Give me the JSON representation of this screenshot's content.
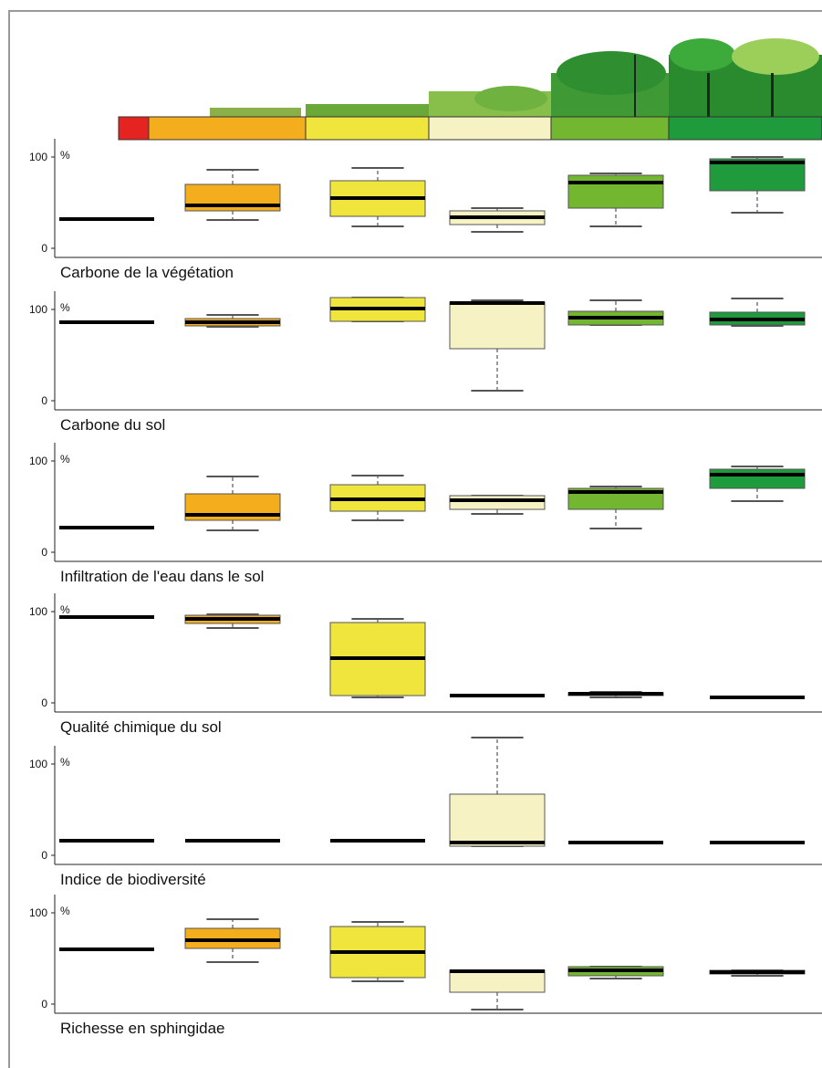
{
  "chart_data": [
    {
      "type": "box",
      "title": "Carbone de la végétation",
      "ylabel": "%",
      "categories": [
        null,
        null,
        null,
        null,
        null,
        null
      ],
      "colors": [
        "#e52421",
        "#f4ad1c",
        "#f0e53c",
        "#f6f2c4",
        "#72b72f",
        "#1f9a3c"
      ],
      "values": [
        [
          32,
          32,
          32,
          32,
          32
        ],
        [
          31,
          41,
          47,
          70,
          86
        ],
        [
          24,
          35,
          55,
          74,
          88
        ],
        [
          18,
          26,
          34,
          41,
          44
        ],
        [
          24,
          44,
          72,
          80,
          82
        ],
        [
          39,
          63,
          94,
          98,
          100
        ]
      ],
      "ylim": [
        -10,
        130
      ],
      "yticks": [
        0,
        100
      ]
    },
    {
      "type": "box",
      "title": "Carbone du sol",
      "ylabel": "%",
      "categories": [
        null,
        null,
        null,
        null,
        null,
        null
      ],
      "colors": [
        "#e52421",
        "#f4ad1c",
        "#f0e53c",
        "#f6f2c4",
        "#72b72f",
        "#1f9a3c"
      ],
      "values": [
        [
          86,
          86,
          86,
          86,
          86
        ],
        [
          81,
          82,
          86,
          90,
          94
        ],
        [
          87,
          87,
          101,
          113,
          113
        ],
        [
          11,
          57,
          107,
          108,
          110
        ],
        [
          83,
          83,
          91,
          98,
          110
        ],
        [
          82,
          83,
          89,
          97,
          112
        ]
      ],
      "ylim": [
        -10,
        130
      ],
      "yticks": [
        0,
        100
      ]
    },
    {
      "type": "box",
      "title": "Infiltration de l'eau dans le sol",
      "ylabel": "%",
      "categories": [
        null,
        null,
        null,
        null,
        null,
        null
      ],
      "colors": [
        "#e52421",
        "#f4ad1c",
        "#f0e53c",
        "#f6f2c4",
        "#72b72f",
        "#1f9a3c"
      ],
      "values": [
        [
          27,
          27,
          27,
          27,
          27
        ],
        [
          24,
          35,
          41,
          64,
          83
        ],
        [
          35,
          45,
          58,
          74,
          84
        ],
        [
          42,
          47,
          57,
          62,
          62
        ],
        [
          26,
          47,
          66,
          70,
          72
        ],
        [
          56,
          70,
          85,
          91,
          94
        ]
      ],
      "ylim": [
        -10,
        130
      ],
      "yticks": [
        0,
        100
      ]
    },
    {
      "type": "box",
      "title": "Qualité chimique du sol",
      "ylabel": "%",
      "categories": [
        null,
        null,
        null,
        null,
        null,
        null
      ],
      "colors": [
        "#e52421",
        "#f4ad1c",
        "#f0e53c",
        "#f6f2c4",
        "#72b72f",
        "#1f9a3c"
      ],
      "values": [
        [
          94,
          94,
          94,
          94,
          94
        ],
        [
          82,
          87,
          92,
          96,
          97
        ],
        [
          6,
          8,
          49,
          88,
          92
        ],
        [
          8,
          8,
          8,
          8,
          8
        ],
        [
          6,
          8,
          10,
          11,
          12
        ],
        [
          6,
          6,
          6,
          6,
          6
        ]
      ],
      "ylim": [
        -10,
        130
      ],
      "yticks": [
        0,
        100
      ]
    },
    {
      "type": "box",
      "title": "Indice de biodiversité",
      "ylabel": "%",
      "categories": [
        null,
        null,
        null,
        null,
        null,
        null
      ],
      "colors": [
        "#e52421",
        "#f4ad1c",
        "#f0e53c",
        "#f6f2c4",
        "#72b72f",
        "#1f9a3c"
      ],
      "values": [
        [
          16,
          16,
          16,
          16,
          16
        ],
        [
          16,
          16,
          16,
          16,
          16
        ],
        [
          16,
          16,
          16,
          16,
          16
        ],
        [
          10,
          10,
          14,
          67,
          129
        ],
        [
          14,
          14,
          14,
          14,
          14
        ],
        [
          14,
          14,
          14,
          14,
          14
        ]
      ],
      "ylim": [
        -10,
        130
      ],
      "yticks": [
        0,
        100
      ]
    },
    {
      "type": "box",
      "title": "Richesse en sphingidae",
      "ylabel": "%",
      "categories": [
        null,
        null,
        null,
        null,
        null,
        null
      ],
      "colors": [
        "#e52421",
        "#f4ad1c",
        "#f0e53c",
        "#f6f2c4",
        "#72b72f",
        "#1f9a3c"
      ],
      "values": [
        [
          60,
          60,
          60,
          60,
          60
        ],
        [
          46,
          61,
          70,
          83,
          93
        ],
        [
          25,
          29,
          57,
          85,
          90
        ],
        [
          -6,
          13,
          36,
          37,
          37
        ],
        [
          28,
          31,
          37,
          41,
          41
        ],
        [
          31,
          33,
          35,
          37,
          37
        ]
      ],
      "ylim": [
        -10,
        130
      ],
      "yticks": [
        0,
        100
      ]
    }
  ]
}
